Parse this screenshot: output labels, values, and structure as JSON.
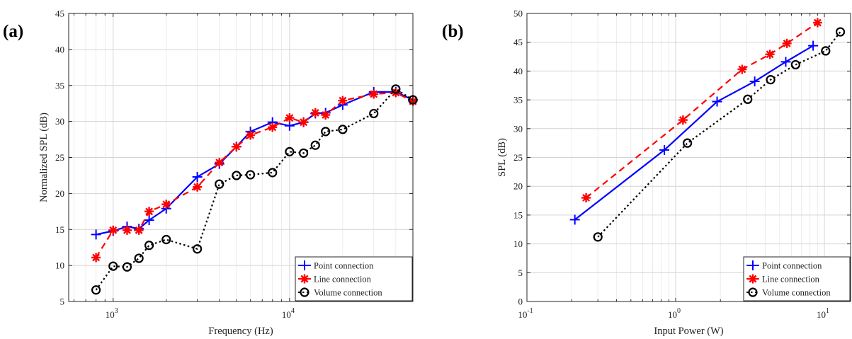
{
  "chart_data": [
    {
      "panel": "(a)",
      "type": "line",
      "xlabel": "Frequency (Hz)",
      "ylabel": "Normalized SPL (dB)",
      "xscale": "log",
      "xlim": [
        560,
        50000
      ],
      "ylim": [
        5,
        45
      ],
      "yticks": [
        5,
        10,
        15,
        20,
        25,
        30,
        35,
        40,
        45
      ],
      "xticks": [
        {
          "value": 1000,
          "base": "10",
          "exp": "3"
        },
        {
          "value": 10000,
          "base": "10",
          "exp": "4"
        }
      ],
      "grid": true,
      "legend_position": "bottom-right",
      "series": [
        {
          "name": "Point connection",
          "color": "#0000ff",
          "marker": "plus",
          "dash": "",
          "x": [
            800,
            1000,
            1200,
            1400,
            1600,
            2000,
            3000,
            4000,
            5000,
            6000,
            8000,
            10000,
            12000,
            14000,
            16000,
            20000,
            30000,
            40000,
            50000
          ],
          "y": [
            14.3,
            14.8,
            15.4,
            15.1,
            16.3,
            17.9,
            22.3,
            24.1,
            26.5,
            28.6,
            29.9,
            29.4,
            29.9,
            31.1,
            31.2,
            32.3,
            34.1,
            34.1,
            33.0
          ]
        },
        {
          "name": "Line connection",
          "color": "#ff0000",
          "marker": "asterisk",
          "dash": "9,6",
          "x": [
            800,
            1000,
            1200,
            1400,
            1600,
            2000,
            3000,
            4000,
            5000,
            6000,
            8000,
            10000,
            12000,
            14000,
            16000,
            20000,
            30000,
            40000,
            50000
          ],
          "y": [
            11.1,
            14.9,
            14.9,
            14.9,
            17.5,
            18.5,
            20.9,
            24.3,
            26.5,
            28.1,
            29.2,
            30.5,
            29.9,
            31.2,
            30.9,
            32.9,
            33.8,
            34.0,
            32.8
          ]
        },
        {
          "name": "Volume connection",
          "color": "#000000",
          "marker": "circle",
          "dash": "2.5,3.5",
          "x": [
            800,
            1000,
            1200,
            1400,
            1600,
            2000,
            3000,
            4000,
            5000,
            6000,
            8000,
            10000,
            12000,
            14000,
            16000,
            20000,
            30000,
            40000,
            50000
          ],
          "y": [
            6.6,
            9.9,
            9.8,
            11.0,
            12.8,
            13.6,
            12.3,
            21.3,
            22.5,
            22.6,
            22.9,
            25.8,
            25.6,
            26.7,
            28.6,
            28.9,
            31.1,
            34.5,
            33.0
          ]
        }
      ]
    },
    {
      "panel": "(b)",
      "type": "line",
      "xlabel": "Input Power (W)",
      "ylabel": "SPL (dB)",
      "xscale": "log",
      "xlim": [
        0.1,
        15
      ],
      "ylim": [
        0,
        50
      ],
      "yticks": [
        0,
        5,
        10,
        15,
        20,
        25,
        30,
        35,
        40,
        45,
        50
      ],
      "xticks": [
        {
          "value": 0.1,
          "base": "10",
          "exp": "-1"
        },
        {
          "value": 1,
          "base": "10",
          "exp": "0"
        },
        {
          "value": 10,
          "base": "10",
          "exp": "1"
        }
      ],
      "grid": true,
      "legend_position": "bottom-right",
      "series": [
        {
          "name": "Point connection",
          "color": "#0000ff",
          "marker": "plus",
          "dash": "",
          "x": [
            0.21,
            0.84,
            1.9,
            3.4,
            5.5,
            8.4
          ],
          "y": [
            14.2,
            26.3,
            34.7,
            38.2,
            41.6,
            44.4
          ]
        },
        {
          "name": "Line connection",
          "color": "#ff0000",
          "marker": "asterisk",
          "dash": "9,6",
          "x": [
            0.25,
            1.12,
            2.8,
            4.3,
            5.6,
            9.0
          ],
          "y": [
            18.0,
            31.5,
            40.3,
            42.9,
            44.8,
            48.4
          ]
        },
        {
          "name": "Volume connection",
          "color": "#000000",
          "marker": "circle",
          "dash": "2.5,3.5",
          "x": [
            0.3,
            1.2,
            3.05,
            4.35,
            6.4,
            10.2,
            12.8
          ],
          "y": [
            11.2,
            27.5,
            35.1,
            38.5,
            41.1,
            43.5,
            46.8
          ]
        }
      ]
    }
  ]
}
